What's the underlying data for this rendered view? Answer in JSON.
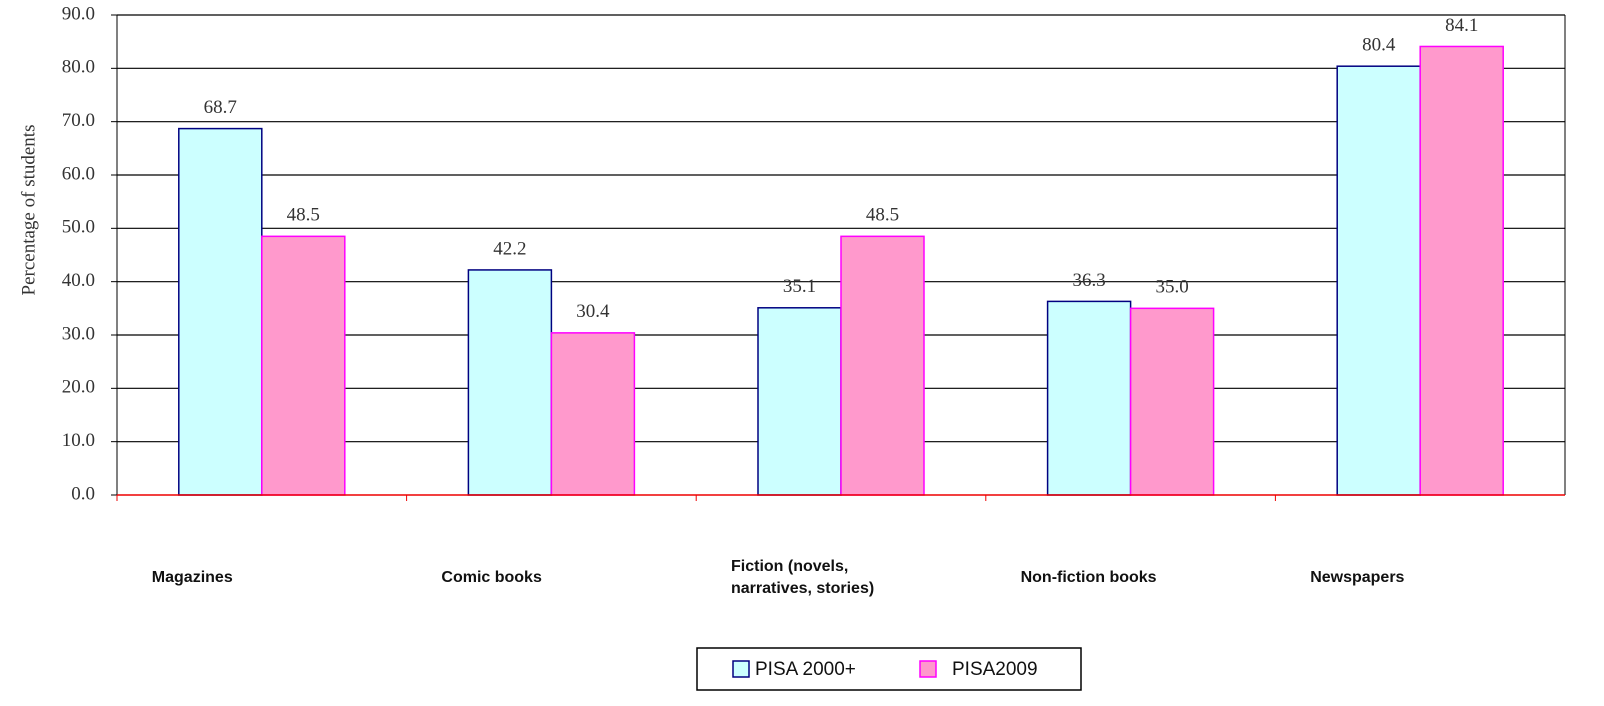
{
  "chart_data": {
    "type": "bar",
    "y_label": "Percentage of students",
    "categories": [
      "Magazines",
      "Comic books",
      "Fiction (novels, narratives, stories)",
      "Non-fiction books",
      "Newspapers"
    ],
    "series": [
      {
        "name": "PISA 2000+",
        "color": "#ccffff",
        "edge_color": "#000080",
        "values": [
          68.7,
          42.2,
          35.1,
          36.3,
          80.4
        ],
        "value_labels": [
          "68.7",
          "42.2",
          "35.1",
          "36.3",
          "80.4"
        ]
      },
      {
        "name": "PISA2009",
        "color": "#ff99cc",
        "edge_color": "#ff00ff",
        "values": [
          48.5,
          30.4,
          48.5,
          35.0,
          84.1
        ],
        "value_labels": [
          "48.5",
          "30.4",
          "48.5",
          "35.0",
          "84.1"
        ]
      }
    ],
    "ylim": [
      0,
      90
    ],
    "yticks": [
      {
        "value": 0,
        "label": "0.0"
      },
      {
        "value": 10,
        "label": "10.0"
      },
      {
        "value": 20,
        "label": "20.0"
      },
      {
        "value": 30,
        "label": "30.0"
      },
      {
        "value": 40,
        "label": "40.0"
      },
      {
        "value": 50,
        "label": "50.0"
      },
      {
        "value": 60,
        "label": "60.0"
      },
      {
        "value": 70,
        "label": "70.0"
      },
      {
        "value": 80,
        "label": "80.0"
      },
      {
        "value": 90,
        "label": "90.0"
      }
    ],
    "grid": true,
    "legend": "bottom"
  }
}
